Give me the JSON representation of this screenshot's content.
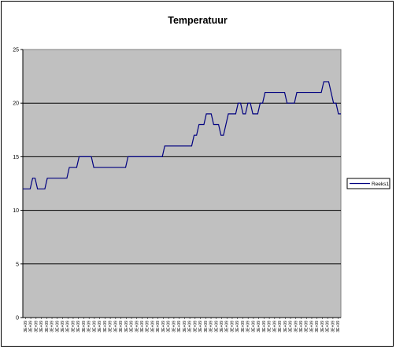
{
  "chart_data": {
    "type": "line",
    "title": "Temperatuur",
    "xlabel": "",
    "ylabel": "",
    "ylim": [
      0,
      25
    ],
    "yticks": [
      "0",
      "5",
      "10",
      "15",
      "20",
      "25"
    ],
    "grid": true,
    "legend_position": "right",
    "colors": {
      "plot_bg": "#c0c0c0",
      "series": "#000080",
      "gridline": "#000000"
    },
    "xtick_labels": [
      "3E+09",
      "3E+09",
      "3E+09",
      "3E+09",
      "3E+09",
      "3E+09",
      "3E+09",
      "3E+09",
      "3E+09",
      "3E+09",
      "3E+09",
      "3E+09",
      "3E+09",
      "3E+09",
      "3E+09",
      "3E+09",
      "3E+09",
      "3E+09",
      "3E+09",
      "3E+09",
      "3E+09",
      "3E+09",
      "3E+09",
      "3E+09",
      "3E+09",
      "3E+09",
      "3E+09",
      "3E+09",
      "3E+09",
      "3E+09",
      "3E+09",
      "3E+09",
      "3E+09",
      "3E+09",
      "3E+09",
      "3E+09",
      "3E+09",
      "3E+09",
      "3E+09",
      "3E+09",
      "3E+09",
      "3E+09",
      "3E+09",
      "3E+09",
      "3E+09",
      "3E+09",
      "3E+09",
      "3E+09",
      "3E+09",
      "3E+09",
      "3E+09",
      "3E+09",
      "3E+09",
      "3E+09",
      "3E+09",
      "3E+09",
      "3E+09",
      "3E+09",
      "3E+09",
      "3E+09"
    ],
    "series": [
      {
        "name": "Reeks1",
        "values": [
          12,
          12,
          12,
          12,
          13,
          13,
          12,
          12,
          12,
          12,
          13,
          13,
          13,
          13,
          13,
          13,
          13,
          13,
          13,
          14,
          14,
          14,
          14,
          15,
          15,
          15,
          15,
          15,
          15,
          14,
          14,
          14,
          14,
          14,
          14,
          14,
          14,
          14,
          14,
          14,
          14,
          14,
          14,
          15,
          15,
          15,
          15,
          15,
          15,
          15,
          15,
          15,
          15,
          15,
          15,
          15,
          15,
          15,
          16,
          16,
          16,
          16,
          16,
          16,
          16,
          16,
          16,
          16,
          16,
          16,
          17,
          17,
          18,
          18,
          18,
          19,
          19,
          19,
          18,
          18,
          18,
          17,
          17,
          18,
          19,
          19,
          19,
          19,
          20,
          20,
          19,
          19,
          20,
          20,
          19,
          19,
          19,
          20,
          20,
          21,
          21,
          21,
          21,
          21,
          21,
          21,
          21,
          21,
          20,
          20,
          20,
          20,
          21,
          21,
          21,
          21,
          21,
          21,
          21,
          21,
          21,
          21,
          21,
          22,
          22,
          22,
          21,
          20,
          20,
          19,
          19
        ]
      }
    ]
  }
}
